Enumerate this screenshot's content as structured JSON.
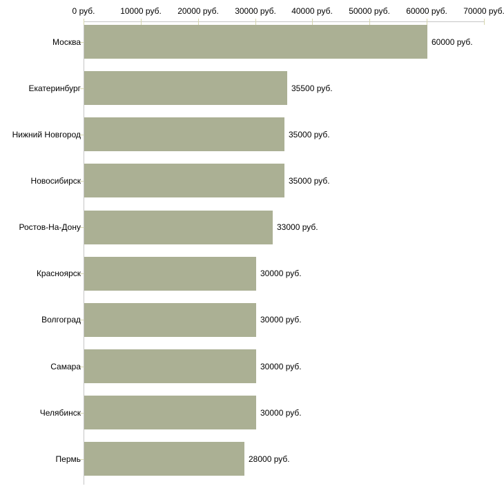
{
  "chart_data": {
    "type": "bar",
    "orientation": "horizontal",
    "title": "",
    "xlabel": "",
    "ylabel": "",
    "categories": [
      "Москва",
      "Екатеринбург",
      "Нижний Новгород",
      "Новосибирск",
      "Ростов-На-Дону",
      "Красноярск",
      "Волгоград",
      "Самара",
      "Челябинск",
      "Пермь"
    ],
    "values": [
      60000,
      35500,
      35000,
      35000,
      33000,
      30000,
      30000,
      30000,
      30000,
      28000
    ],
    "value_labels": [
      "60000 руб.",
      "35500 руб.",
      "35000 руб.",
      "35000 руб.",
      "33000 руб.",
      "30000 руб.",
      "30000 руб.",
      "30000 руб.",
      "30000 руб.",
      "28000 руб."
    ],
    "unit": "руб.",
    "x_axis": {
      "position": "top",
      "min": 0,
      "max": 70000,
      "tick_interval": 10000,
      "tick_labels": [
        "0 руб.",
        "10000 руб.",
        "20000 руб.",
        "30000 руб.",
        "40000 руб.",
        "50000 руб.",
        "60000 руб.",
        "70000 руб."
      ]
    },
    "grid": false,
    "legend": false
  },
  "colors": {
    "bar": "#abb094",
    "axis_line": "#c5c5c5",
    "tick_mark": "#d6d6ad",
    "text": "#000000",
    "background": "#ffffff"
  }
}
